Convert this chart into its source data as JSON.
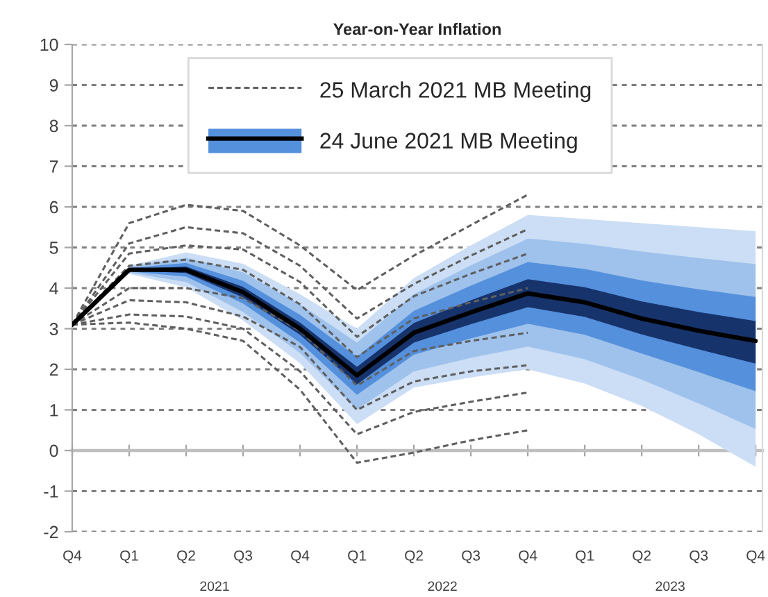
{
  "chart_data": {
    "type": "line",
    "title": "Year-on-Year Inflation",
    "categories": [
      "Q4",
      "Q1",
      "Q2",
      "Q3",
      "Q4",
      "Q1",
      "Q2",
      "Q3",
      "Q4",
      "Q1",
      "Q2",
      "Q3",
      "Q4"
    ],
    "annotations": [
      "2021",
      "2022",
      "2023"
    ],
    "ylim": [
      -2,
      10
    ],
    "yticks": [
      -2,
      -1,
      0,
      1,
      2,
      3,
      4,
      5,
      6,
      7,
      8,
      9,
      10
    ],
    "grid": "y",
    "legend": "top",
    "series": [
      {
        "color": "#cbdef5",
        "values": [
          null,
          null,
          null,
          null,
          null,
          null,
          null,
          null,
          null,
          null,
          null,
          null,
          null
        ],
        "upper": [
          null,
          4.55,
          4.88,
          4.6,
          3.85,
          3.0,
          4.25,
          5.05,
          5.8,
          5.7,
          5.6,
          5.5,
          5.4
        ],
        "lower": [
          null,
          4.35,
          4.02,
          3.2,
          2.15,
          0.65,
          1.55,
          1.8,
          2.0,
          1.65,
          1.1,
          0.4,
          -0.4
        ]
      },
      {
        "color": "#9fc2ec",
        "values": [
          null,
          null,
          null,
          null,
          null,
          null,
          null,
          null,
          null,
          null,
          null,
          null,
          null
        ],
        "upper": [
          null,
          4.52,
          4.75,
          4.39,
          3.6,
          2.66,
          3.85,
          4.56,
          5.22,
          5.09,
          4.9,
          4.74,
          4.59
        ],
        "lower": [
          null,
          4.38,
          4.15,
          3.41,
          2.4,
          1.01,
          1.95,
          2.28,
          2.56,
          2.25,
          1.75,
          1.16,
          0.53
        ]
      },
      {
        "color": "#5590dc",
        "values": [
          null,
          null,
          null,
          null,
          null,
          null,
          null,
          null,
          null,
          null,
          null,
          null,
          null
        ],
        "upper": [
          null,
          4.49,
          4.62,
          4.18,
          3.34,
          2.31,
          3.44,
          4.06,
          4.64,
          4.47,
          4.19,
          3.97,
          3.78
        ],
        "lower": [
          null,
          4.41,
          4.28,
          3.62,
          2.66,
          1.37,
          2.36,
          2.76,
          3.12,
          2.85,
          2.39,
          1.93,
          1.46
        ]
      },
      {
        "color": "#17336c",
        "values": [
          null,
          null,
          null,
          null,
          null,
          null,
          null,
          null,
          null,
          null,
          null,
          null,
          null
        ],
        "upper": [
          null,
          4.47,
          4.53,
          4.03,
          3.15,
          2.06,
          3.14,
          3.7,
          4.22,
          4.02,
          3.67,
          3.41,
          3.19
        ],
        "lower": [
          null,
          4.43,
          4.37,
          3.77,
          2.85,
          1.63,
          2.66,
          3.11,
          3.53,
          3.29,
          2.86,
          2.49,
          2.14
        ]
      },
      {
        "name": "25 March 2021 MB Meeting",
        "line_style": "dashed",
        "color": "#5f5f5f",
        "values": [
          3.1,
          5.6,
          6.05,
          5.9,
          5.05,
          3.95,
          4.8,
          5.55,
          6.3,
          null,
          null,
          null,
          null
        ]
      },
      {
        "line_style": "dashed",
        "color": "#5f5f5f",
        "values": [
          3.1,
          5.1,
          5.5,
          5.35,
          4.55,
          3.25,
          4.1,
          4.8,
          5.45,
          null,
          null,
          null,
          null
        ]
      },
      {
        "line_style": "dashed",
        "color": "#5f5f5f",
        "values": [
          3.1,
          4.85,
          5.05,
          4.95,
          4.15,
          2.8,
          3.8,
          4.35,
          4.85,
          null,
          null,
          null,
          null
        ]
      },
      {
        "line_style": "dashed",
        "color": "#5f5f5f",
        "values": [
          3.1,
          4.55,
          4.7,
          4.45,
          3.6,
          2.3,
          3.25,
          3.65,
          4.0,
          null,
          null,
          null,
          null
        ]
      },
      {
        "line_style": "dashed",
        "color": "#5f5f5f",
        "values": [
          3.1,
          4.0,
          4.0,
          3.75,
          2.95,
          1.6,
          2.45,
          2.7,
          2.9,
          null,
          null,
          null,
          null
        ]
      },
      {
        "line_style": "dashed",
        "color": "#5f5f5f",
        "values": [
          3.1,
          3.7,
          3.65,
          3.3,
          2.55,
          1.0,
          1.7,
          1.95,
          2.1,
          null,
          null,
          null,
          null
        ]
      },
      {
        "line_style": "dashed",
        "color": "#5f5f5f",
        "values": [
          3.1,
          3.35,
          3.3,
          3.0,
          1.95,
          0.4,
          0.95,
          1.2,
          1.43,
          null,
          null,
          null,
          null
        ]
      },
      {
        "line_style": "dashed",
        "color": "#5f5f5f",
        "values": [
          3.1,
          3.15,
          3.0,
          2.7,
          1.5,
          -0.3,
          -0.05,
          0.25,
          0.5,
          null,
          null,
          null,
          null
        ]
      },
      {
        "name": "24 June 2021 MB Meeting",
        "line_style": "solid",
        "color": "#000000",
        "values": [
          3.1,
          4.45,
          4.45,
          3.9,
          3.0,
          1.85,
          2.9,
          3.4,
          3.87,
          3.65,
          3.25,
          2.95,
          2.7
        ]
      }
    ]
  }
}
